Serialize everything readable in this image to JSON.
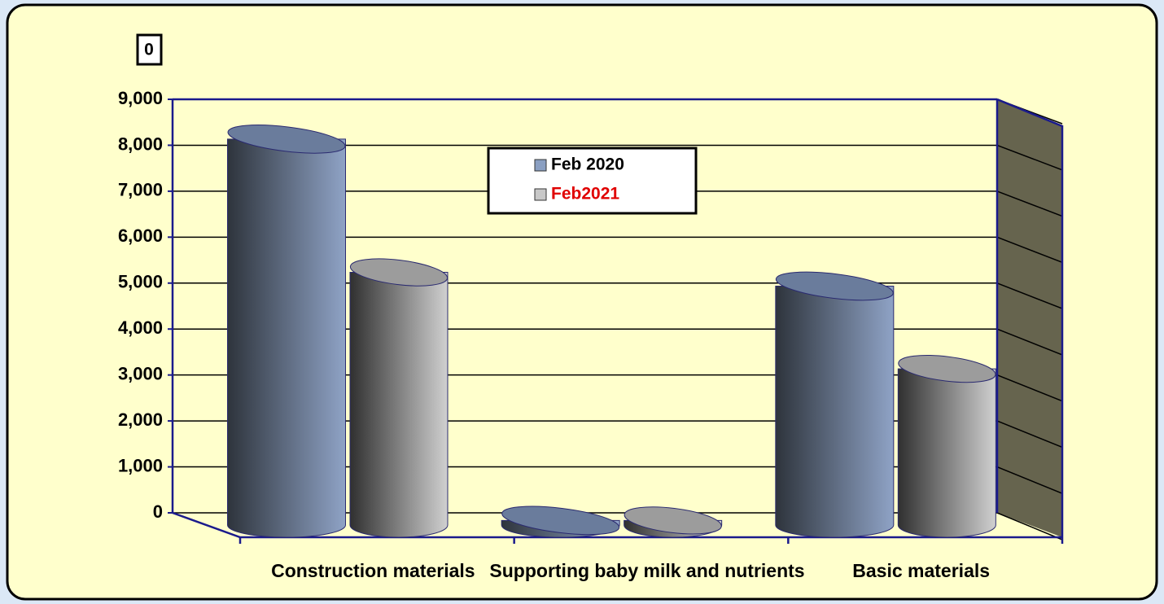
{
  "chart_data": {
    "type": "bar3d",
    "title": "0",
    "categories": [
      "Construction materials",
      "Supporting baby milk and nutrients",
      "Basic materials"
    ],
    "series": [
      {
        "name": "Feb2021",
        "color": "#c8c8c8",
        "label_color": "#e00000",
        "values": [
          5500,
          100,
          3400
        ]
      },
      {
        "name": "Feb 2020",
        "color": "#8a9fc2",
        "label_color": "#000000",
        "values": [
          8400,
          100,
          5200
        ]
      }
    ],
    "ylim": [
      0,
      9000
    ],
    "yticks": [
      0,
      {
        "value": 1000,
        "label": "1,000"
      },
      {
        "value": 2000,
        "label": "2,000"
      },
      {
        "value": 3000,
        "label": "3,000"
      },
      {
        "value": 4000,
        "label": "4,000"
      },
      {
        "value": 5000,
        "label": "5,000"
      },
      {
        "value": 6000,
        "label": "6,000"
      },
      {
        "value": 7000,
        "label": "7,000"
      },
      {
        "value": 8000,
        "label": "8,000"
      },
      {
        "value": 9000,
        "label": "9,000"
      }
    ],
    "grid": true
  }
}
